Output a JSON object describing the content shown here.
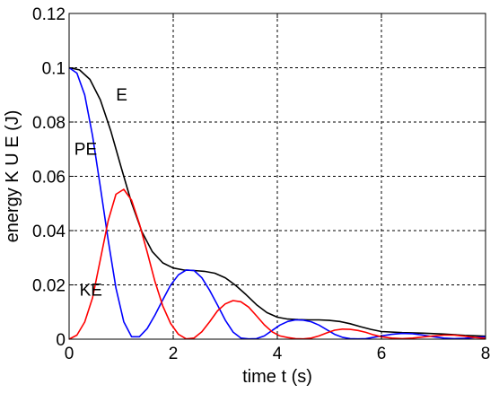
{
  "chart_data": {
    "type": "line",
    "xlabel": "time  t  (s)",
    "ylabel": "energy  K U E  (J)",
    "xlim": [
      0,
      8
    ],
    "ylim": [
      0,
      0.12
    ],
    "xticks": [
      0,
      2,
      4,
      6,
      8
    ],
    "yticks": [
      0,
      0.02,
      0.04,
      0.06,
      0.08,
      0.1,
      0.12
    ],
    "xtick_labels": [
      "0",
      "2",
      "4",
      "6",
      "8"
    ],
    "ytick_labels": [
      "0",
      "0.02",
      "0.04",
      "0.06",
      "0.08",
      "0.1",
      "0.12"
    ],
    "grid": true,
    "colors": {
      "E": "#000000",
      "PE": "#0000ff",
      "KE": "#ff0000"
    },
    "annotations": [
      {
        "text": "E",
        "x": 0.9,
        "y": 0.088
      },
      {
        "text": "PE",
        "x": 0.1,
        "y": 0.068
      },
      {
        "text": "KE",
        "x": 0.2,
        "y": 0.016
      }
    ],
    "series": [
      {
        "key": "E",
        "x": [
          0,
          0.2,
          0.4,
          0.6,
          0.8,
          1.0,
          1.2,
          1.4,
          1.6,
          1.8,
          2.0,
          2.2,
          2.4,
          2.6,
          2.8,
          3.0,
          3.2,
          3.4,
          3.6,
          3.8,
          4.0,
          4.2,
          4.4,
          4.6,
          4.8,
          5.0,
          5.2,
          5.4,
          5.6,
          5.8,
          6.0,
          6.4,
          6.8,
          7.2,
          7.6,
          8.0
        ],
        "y": [
          0.1,
          0.0992,
          0.0957,
          0.0882,
          0.0768,
          0.0633,
          0.0502,
          0.0395,
          0.0322,
          0.0281,
          0.0262,
          0.0255,
          0.0253,
          0.025,
          0.0243,
          0.0226,
          0.0198,
          0.0164,
          0.0127,
          0.0098,
          0.0081,
          0.0074,
          0.0072,
          0.0071,
          0.0071,
          0.0069,
          0.0065,
          0.0057,
          0.0046,
          0.0036,
          0.0028,
          0.0024,
          0.0022,
          0.0019,
          0.0014,
          0.0011
        ]
      },
      {
        "key": "PE",
        "x": [
          0,
          0.15,
          0.3,
          0.45,
          0.6,
          0.75,
          0.9,
          1.05,
          1.2,
          1.35,
          1.5,
          1.65,
          1.8,
          1.95,
          2.1,
          2.25,
          2.4,
          2.55,
          2.7,
          2.85,
          3.0,
          3.15,
          3.3,
          3.45,
          3.6,
          3.75,
          3.9,
          4.05,
          4.2,
          4.35,
          4.5,
          4.65,
          4.8,
          4.95,
          5.1,
          5.25,
          5.4,
          5.55,
          5.7,
          5.85,
          6.0,
          6.2,
          6.4,
          6.6,
          6.8,
          7.0,
          7.2,
          7.4,
          7.6,
          7.8,
          8.0
        ],
        "y": [
          0.1,
          0.098,
          0.09,
          0.075,
          0.0561,
          0.0366,
          0.0188,
          0.0064,
          0.0009,
          0.0009,
          0.0039,
          0.0089,
          0.0145,
          0.0199,
          0.0237,
          0.0255,
          0.0253,
          0.0226,
          0.018,
          0.0126,
          0.007,
          0.0026,
          0.0004,
          0.0001,
          0.0002,
          0.0012,
          0.0032,
          0.0052,
          0.0065,
          0.0071,
          0.007,
          0.0064,
          0.0052,
          0.0035,
          0.0018,
          0.0007,
          0.0002,
          0.0001,
          0.0002,
          0.0007,
          0.0012,
          0.0018,
          0.0021,
          0.002,
          0.0015,
          0.0009,
          0.0004,
          0.0002,
          0.0003,
          0.0006,
          0.0009
        ]
      },
      {
        "key": "KE",
        "x": [
          0,
          0.15,
          0.3,
          0.45,
          0.6,
          0.75,
          0.9,
          1.05,
          1.2,
          1.35,
          1.5,
          1.65,
          1.8,
          1.95,
          2.1,
          2.25,
          2.4,
          2.55,
          2.7,
          2.85,
          3.0,
          3.15,
          3.3,
          3.45,
          3.6,
          3.75,
          3.9,
          4.05,
          4.2,
          4.35,
          4.5,
          4.65,
          4.8,
          4.95,
          5.1,
          5.25,
          5.4,
          5.55,
          5.7,
          5.85,
          6.0,
          6.2,
          6.4,
          6.6,
          6.8,
          7.0,
          7.2,
          7.4,
          7.6,
          7.8,
          8.0
        ],
        "y": [
          0,
          0.0015,
          0.0063,
          0.0152,
          0.0293,
          0.0436,
          0.0534,
          0.0552,
          0.0512,
          0.0425,
          0.0321,
          0.0212,
          0.0122,
          0.0058,
          0.0018,
          0.0001,
          0.0004,
          0.0027,
          0.0064,
          0.0104,
          0.013,
          0.0142,
          0.0138,
          0.0118,
          0.0086,
          0.0053,
          0.0027,
          0.0012,
          0.0006,
          0.0002,
          0.0001,
          0.0004,
          0.0012,
          0.0023,
          0.0033,
          0.0037,
          0.0036,
          0.0032,
          0.0025,
          0.0016,
          0.0009,
          0.0004,
          0.0002,
          0.0004,
          0.0008,
          0.0012,
          0.0015,
          0.0015,
          0.0011,
          0.0006,
          0.0003
        ]
      }
    ]
  }
}
